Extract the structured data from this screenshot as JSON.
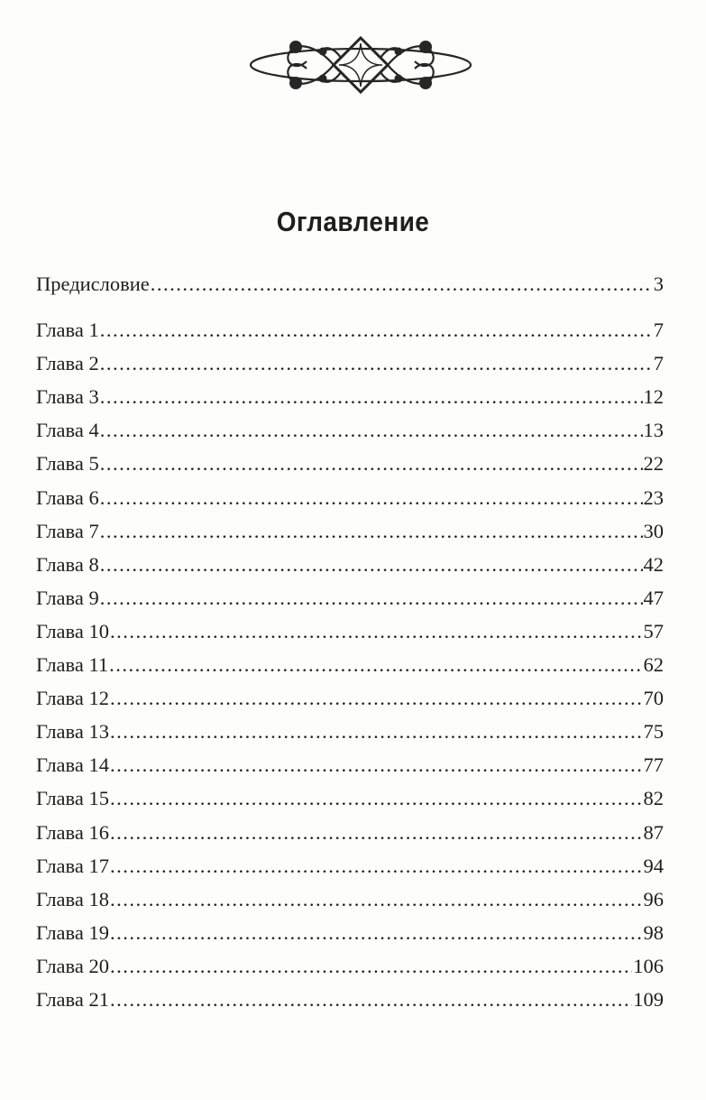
{
  "header": {
    "ornament": "decorative-flourish"
  },
  "title": "Оглавление",
  "entries": [
    {
      "label": "Предисловие",
      "page": "3"
    },
    {
      "label": "Глава 1",
      "page": "7"
    },
    {
      "label": "Глава 2",
      "page": "7"
    },
    {
      "label": "Глава 3",
      "page": "12"
    },
    {
      "label": "Глава 4",
      "page": "13"
    },
    {
      "label": "Глава 5",
      "page": "22"
    },
    {
      "label": "Глава 6",
      "page": "23"
    },
    {
      "label": "Глава 7",
      "page": "30"
    },
    {
      "label": "Глава 8",
      "page": "42"
    },
    {
      "label": "Глава 9",
      "page": "47"
    },
    {
      "label": "Глава 10",
      "page": "57"
    },
    {
      "label": "Глава 11",
      "page": "62"
    },
    {
      "label": "Глава 12",
      "page": "70"
    },
    {
      "label": "Глава 13",
      "page": "75"
    },
    {
      "label": "Глава 14",
      "page": "77"
    },
    {
      "label": "Глава 15",
      "page": "82"
    },
    {
      "label": "Глава 16",
      "page": "87"
    },
    {
      "label": "Глава 17",
      "page": "94"
    },
    {
      "label": "Глава 18",
      "page": "96"
    },
    {
      "label": "Глава 19",
      "page": "98"
    },
    {
      "label": "Глава 20",
      "page": "106"
    },
    {
      "label": "Глава 21",
      "page": "109"
    }
  ]
}
